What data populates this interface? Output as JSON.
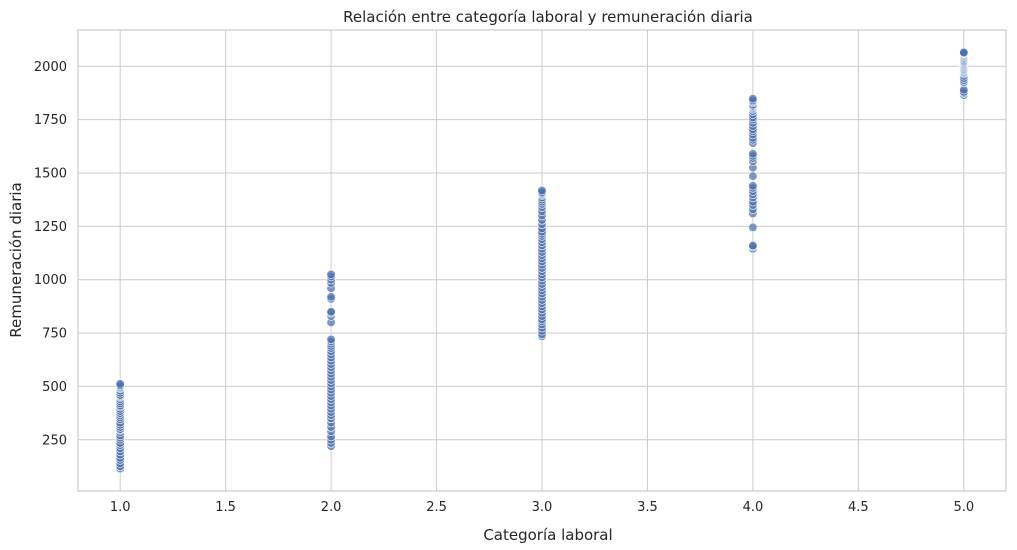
{
  "chart_data": {
    "type": "scatter",
    "title": "Relación entre categoría laboral y remuneración diaria",
    "xlabel": "Categoría laboral",
    "ylabel": "Remuneración diaria",
    "xlim": [
      0.8,
      5.2
    ],
    "ylim": [
      10,
      2170
    ],
    "xticks": [
      1.0,
      1.5,
      2.0,
      2.5,
      3.0,
      3.5,
      4.0,
      4.5,
      5.0
    ],
    "xtick_labels": [
      "1.0",
      "1.5",
      "2.0",
      "2.5",
      "3.0",
      "3.5",
      "4.0",
      "4.5",
      "5.0"
    ],
    "yticks": [
      250,
      500,
      750,
      1000,
      1250,
      1500,
      1750,
      2000
    ],
    "ytick_labels": [
      "250",
      "500",
      "750",
      "1000",
      "1250",
      "1500",
      "1750",
      "2000"
    ],
    "grid": true,
    "marker_color": "#4c72b0",
    "series": [
      {
        "x": [
          1,
          1,
          1,
          1,
          1,
          1,
          1,
          1,
          1,
          1,
          1,
          1,
          1,
          1,
          1,
          1,
          1,
          1,
          1,
          1,
          1,
          1,
          1,
          1,
          1,
          1,
          1,
          1,
          1,
          1,
          1,
          1,
          1,
          1,
          1,
          1,
          1,
          1,
          1,
          1
        ],
        "y": [
          115,
          125,
          140,
          155,
          165,
          180,
          195,
          210,
          225,
          235,
          250,
          260,
          270,
          285,
          295,
          300,
          310,
          320,
          330,
          345,
          355,
          365,
          375,
          385,
          395,
          405,
          410,
          420,
          430,
          440,
          450,
          455,
          460,
          470,
          480,
          490,
          495,
          500,
          505,
          512
        ]
      },
      {
        "x": [
          2,
          2,
          2,
          2,
          2,
          2,
          2,
          2,
          2,
          2,
          2,
          2,
          2,
          2,
          2,
          2,
          2,
          2,
          2,
          2,
          2,
          2,
          2,
          2,
          2,
          2,
          2,
          2,
          2,
          2,
          2,
          2,
          2,
          2,
          2,
          2,
          2,
          2,
          2,
          2,
          2,
          2,
          2,
          2,
          2
        ],
        "y": [
          220,
          235,
          250,
          265,
          290,
          310,
          330,
          350,
          365,
          380,
          395,
          410,
          425,
          440,
          455,
          470,
          485,
          500,
          515,
          530,
          545,
          560,
          575,
          590,
          605,
          620,
          635,
          650,
          665,
          680,
          690,
          700,
          710,
          720,
          800,
          830,
          845,
          850,
          910,
          920,
          960,
          985,
          1000,
          1015,
          1025
        ]
      },
      {
        "x": [
          3,
          3,
          3,
          3,
          3,
          3,
          3,
          3,
          3,
          3,
          3,
          3,
          3,
          3,
          3,
          3,
          3,
          3,
          3,
          3,
          3,
          3,
          3,
          3,
          3,
          3,
          3,
          3,
          3,
          3,
          3,
          3,
          3,
          3,
          3,
          3,
          3,
          3,
          3,
          3,
          3,
          3,
          3,
          3,
          3,
          3,
          3,
          3,
          3,
          3
        ],
        "y": [
          735,
          745,
          760,
          775,
          790,
          805,
          815,
          830,
          845,
          860,
          875,
          890,
          905,
          920,
          935,
          950,
          965,
          980,
          995,
          1010,
          1025,
          1040,
          1055,
          1070,
          1085,
          1100,
          1115,
          1130,
          1145,
          1160,
          1175,
          1190,
          1205,
          1215,
          1225,
          1240,
          1260,
          1280,
          1300,
          1320,
          1340,
          1355,
          1365,
          1375,
          1385,
          1395,
          1400,
          1405,
          1410,
          1418
        ]
      },
      {
        "x": [
          4,
          4,
          4,
          4,
          4,
          4,
          4,
          4,
          4,
          4,
          4,
          4,
          4,
          4,
          4,
          4,
          4,
          4,
          4,
          4,
          4,
          4,
          4,
          4,
          4,
          4,
          4,
          4,
          4,
          4,
          4,
          4,
          4,
          4,
          4,
          4,
          4,
          4,
          4,
          4
        ],
        "y": [
          1145,
          1155,
          1160,
          1245,
          1310,
          1330,
          1350,
          1365,
          1385,
          1400,
          1415,
          1430,
          1440,
          1485,
          1525,
          1555,
          1570,
          1580,
          1590,
          1640,
          1655,
          1665,
          1680,
          1695,
          1705,
          1720,
          1735,
          1750,
          1760,
          1775,
          1790,
          1800,
          1805,
          1810,
          1815,
          1820,
          1830,
          1835,
          1840,
          1848
        ]
      },
      {
        "x": [
          5,
          5,
          5,
          5,
          5,
          5,
          5,
          5,
          5,
          5,
          5,
          5,
          5,
          5,
          5,
          5,
          5,
          5,
          5,
          5,
          5,
          5,
          5,
          5,
          5,
          5,
          5,
          5,
          5,
          5
        ],
        "y": [
          1865,
          1875,
          1880,
          1890,
          1925,
          1935,
          1945,
          1955,
          1965,
          1970,
          1975,
          1980,
          1985,
          1990,
          1995,
          2000,
          2005,
          2010,
          2015,
          2020,
          2025,
          2030,
          2035,
          2040,
          2045,
          2050,
          2055,
          2060,
          2062,
          2065
        ]
      }
    ]
  }
}
